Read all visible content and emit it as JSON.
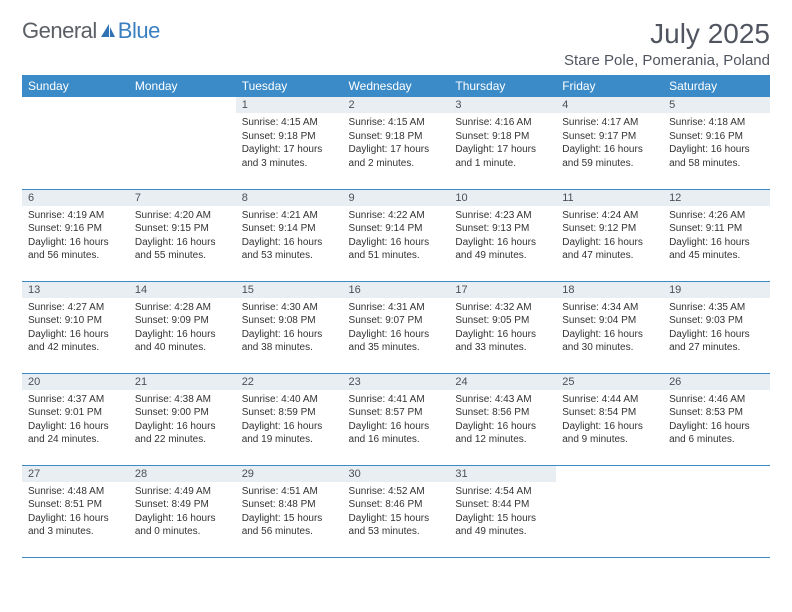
{
  "brand": {
    "name1": "General",
    "name2": "Blue"
  },
  "title": "July 2025",
  "location": "Stare Pole, Pomerania, Poland",
  "colors": {
    "header_bg": "#3b8bc9",
    "header_text": "#ffffff",
    "daynum_bg": "#e9eef2",
    "border": "#3b8bc9",
    "text": "#333333",
    "brand_gray": "#606770",
    "brand_blue": "#3a7fc0"
  },
  "weekdays": [
    "Sunday",
    "Monday",
    "Tuesday",
    "Wednesday",
    "Thursday",
    "Friday",
    "Saturday"
  ],
  "weeks": [
    [
      null,
      null,
      {
        "n": "1",
        "sr": "4:15 AM",
        "ss": "9:18 PM",
        "dl": "17 hours and 3 minutes."
      },
      {
        "n": "2",
        "sr": "4:15 AM",
        "ss": "9:18 PM",
        "dl": "17 hours and 2 minutes."
      },
      {
        "n": "3",
        "sr": "4:16 AM",
        "ss": "9:18 PM",
        "dl": "17 hours and 1 minute."
      },
      {
        "n": "4",
        "sr": "4:17 AM",
        "ss": "9:17 PM",
        "dl": "16 hours and 59 minutes."
      },
      {
        "n": "5",
        "sr": "4:18 AM",
        "ss": "9:16 PM",
        "dl": "16 hours and 58 minutes."
      }
    ],
    [
      {
        "n": "6",
        "sr": "4:19 AM",
        "ss": "9:16 PM",
        "dl": "16 hours and 56 minutes."
      },
      {
        "n": "7",
        "sr": "4:20 AM",
        "ss": "9:15 PM",
        "dl": "16 hours and 55 minutes."
      },
      {
        "n": "8",
        "sr": "4:21 AM",
        "ss": "9:14 PM",
        "dl": "16 hours and 53 minutes."
      },
      {
        "n": "9",
        "sr": "4:22 AM",
        "ss": "9:14 PM",
        "dl": "16 hours and 51 minutes."
      },
      {
        "n": "10",
        "sr": "4:23 AM",
        "ss": "9:13 PM",
        "dl": "16 hours and 49 minutes."
      },
      {
        "n": "11",
        "sr": "4:24 AM",
        "ss": "9:12 PM",
        "dl": "16 hours and 47 minutes."
      },
      {
        "n": "12",
        "sr": "4:26 AM",
        "ss": "9:11 PM",
        "dl": "16 hours and 45 minutes."
      }
    ],
    [
      {
        "n": "13",
        "sr": "4:27 AM",
        "ss": "9:10 PM",
        "dl": "16 hours and 42 minutes."
      },
      {
        "n": "14",
        "sr": "4:28 AM",
        "ss": "9:09 PM",
        "dl": "16 hours and 40 minutes."
      },
      {
        "n": "15",
        "sr": "4:30 AM",
        "ss": "9:08 PM",
        "dl": "16 hours and 38 minutes."
      },
      {
        "n": "16",
        "sr": "4:31 AM",
        "ss": "9:07 PM",
        "dl": "16 hours and 35 minutes."
      },
      {
        "n": "17",
        "sr": "4:32 AM",
        "ss": "9:05 PM",
        "dl": "16 hours and 33 minutes."
      },
      {
        "n": "18",
        "sr": "4:34 AM",
        "ss": "9:04 PM",
        "dl": "16 hours and 30 minutes."
      },
      {
        "n": "19",
        "sr": "4:35 AM",
        "ss": "9:03 PM",
        "dl": "16 hours and 27 minutes."
      }
    ],
    [
      {
        "n": "20",
        "sr": "4:37 AM",
        "ss": "9:01 PM",
        "dl": "16 hours and 24 minutes."
      },
      {
        "n": "21",
        "sr": "4:38 AM",
        "ss": "9:00 PM",
        "dl": "16 hours and 22 minutes."
      },
      {
        "n": "22",
        "sr": "4:40 AM",
        "ss": "8:59 PM",
        "dl": "16 hours and 19 minutes."
      },
      {
        "n": "23",
        "sr": "4:41 AM",
        "ss": "8:57 PM",
        "dl": "16 hours and 16 minutes."
      },
      {
        "n": "24",
        "sr": "4:43 AM",
        "ss": "8:56 PM",
        "dl": "16 hours and 12 minutes."
      },
      {
        "n": "25",
        "sr": "4:44 AM",
        "ss": "8:54 PM",
        "dl": "16 hours and 9 minutes."
      },
      {
        "n": "26",
        "sr": "4:46 AM",
        "ss": "8:53 PM",
        "dl": "16 hours and 6 minutes."
      }
    ],
    [
      {
        "n": "27",
        "sr": "4:48 AM",
        "ss": "8:51 PM",
        "dl": "16 hours and 3 minutes."
      },
      {
        "n": "28",
        "sr": "4:49 AM",
        "ss": "8:49 PM",
        "dl": "16 hours and 0 minutes."
      },
      {
        "n": "29",
        "sr": "4:51 AM",
        "ss": "8:48 PM",
        "dl": "15 hours and 56 minutes."
      },
      {
        "n": "30",
        "sr": "4:52 AM",
        "ss": "8:46 PM",
        "dl": "15 hours and 53 minutes."
      },
      {
        "n": "31",
        "sr": "4:54 AM",
        "ss": "8:44 PM",
        "dl": "15 hours and 49 minutes."
      },
      null,
      null
    ]
  ],
  "labels": {
    "sunrise": "Sunrise: ",
    "sunset": "Sunset: ",
    "daylight": "Daylight: "
  }
}
